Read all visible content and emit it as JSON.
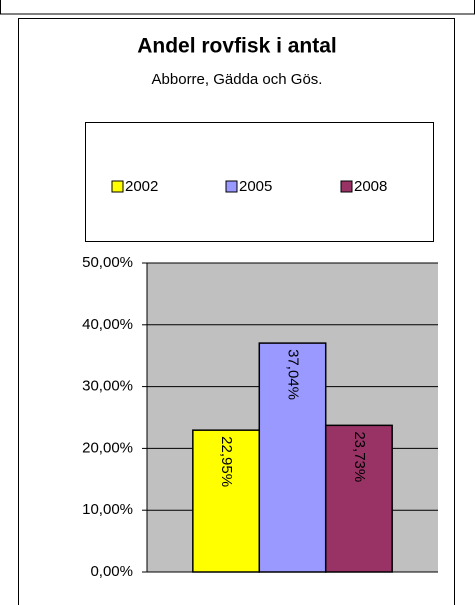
{
  "chart_data": {
    "type": "bar",
    "title": "Andel rovfisk i antal",
    "subtitle": "Abborre, Gädda och Gös.",
    "categories": [
      null
    ],
    "series": [
      {
        "name": "2002",
        "color": "#ffff00",
        "values": [
          22.95
        ],
        "value_labels": [
          "22,95%"
        ]
      },
      {
        "name": "2005",
        "color": "#9999ff",
        "values": [
          37.04
        ],
        "value_labels": [
          "37,04%"
        ]
      },
      {
        "name": "2008",
        "color": "#993366",
        "values": [
          23.73
        ],
        "value_labels": [
          "23,73%"
        ]
      }
    ],
    "ylim": [
      0,
      50
    ],
    "yticks": [
      {
        "value": 0,
        "label": "0,00%"
      },
      {
        "value": 10,
        "label": "10,00%"
      },
      {
        "value": 20,
        "label": "20,00%"
      },
      {
        "value": 30,
        "label": "30,00%"
      },
      {
        "value": 40,
        "label": "40,00%"
      },
      {
        "value": 50,
        "label": "50,00%"
      }
    ],
    "grid": true,
    "plot_background": "#c0c0c0"
  }
}
